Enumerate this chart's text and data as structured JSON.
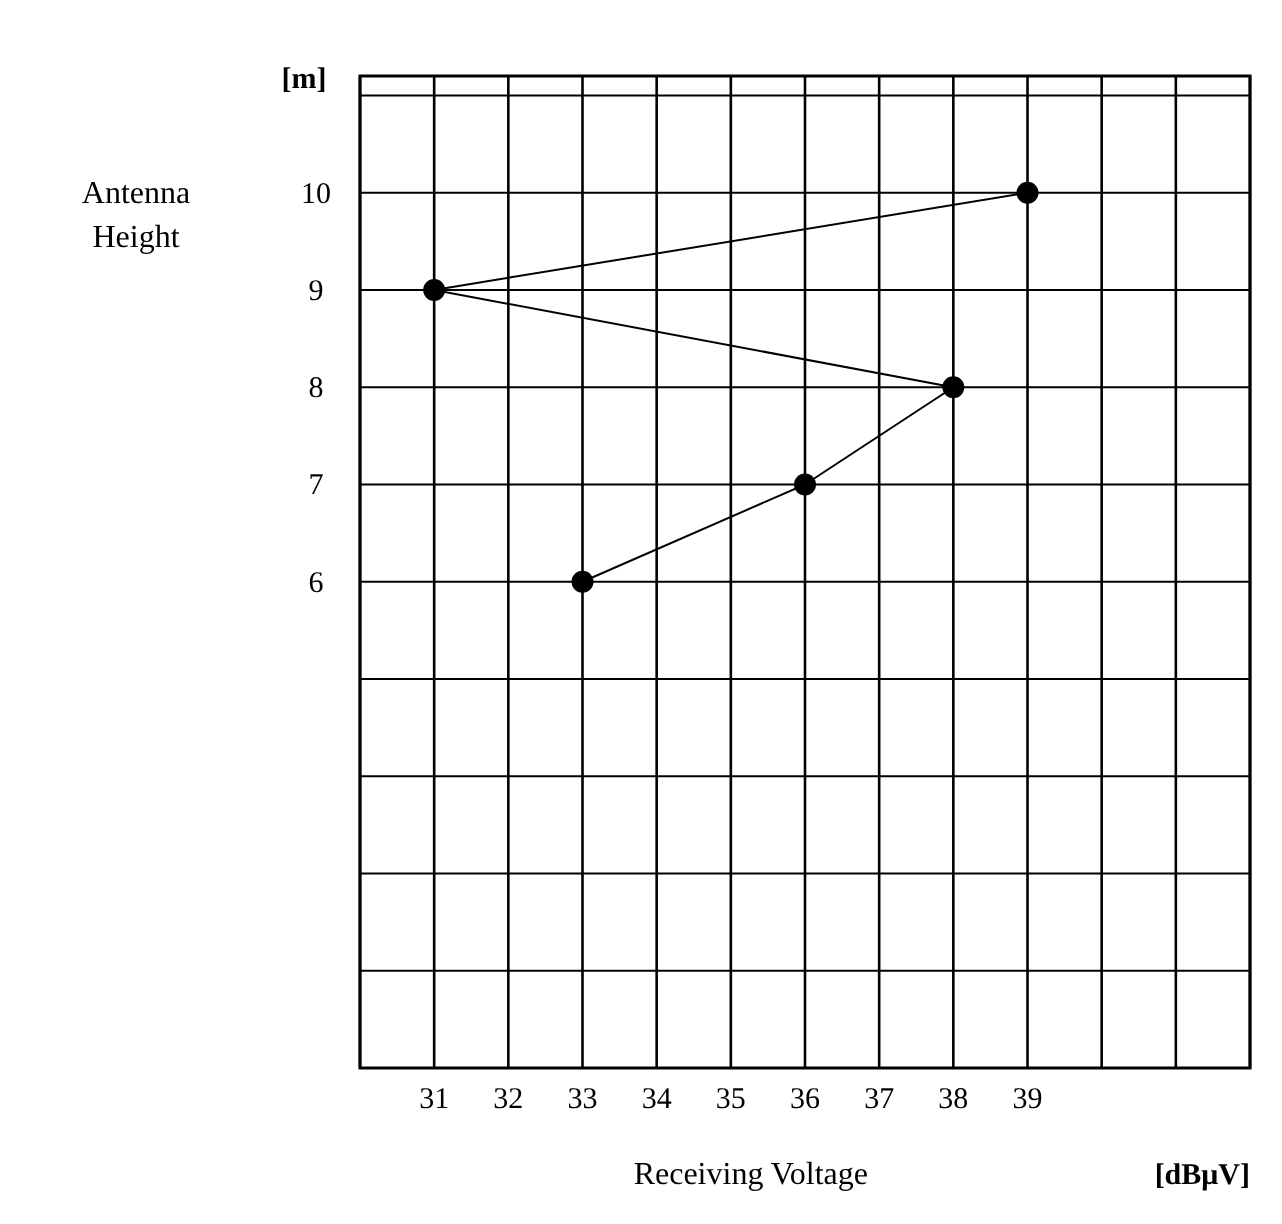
{
  "chart_data": {
    "type": "line",
    "xlabel": "Receiving Voltage",
    "ylabel": "Antenna Height",
    "annotations": [
      "[m]",
      "[dBμV]"
    ],
    "series": [
      {
        "color": "#000000",
        "x": [
          39,
          31,
          38,
          36,
          33
        ],
        "values": [
          10,
          9,
          8,
          7,
          6
        ]
      }
    ],
    "xlim": [
      30,
      42
    ],
    "xticks": [
      {
        "value": 30,
        "label": null
      },
      31,
      32,
      33,
      34,
      35,
      36,
      37,
      38,
      39,
      {
        "value": 40,
        "label": null
      },
      {
        "value": 41,
        "label": null
      },
      {
        "value": 42,
        "label": null
      }
    ],
    "ylim": [
      1,
      11.2
    ],
    "yticks": [
      {
        "value": 1,
        "label": null
      },
      {
        "value": 2,
        "label": null
      },
      {
        "value": 3,
        "label": null
      },
      {
        "value": 4,
        "label": null
      },
      {
        "value": 5,
        "label": null
      },
      6,
      7,
      8,
      9,
      10,
      {
        "value": 11,
        "label": null
      }
    ],
    "grid": true,
    "marker": "circle",
    "line_style": "solid"
  }
}
